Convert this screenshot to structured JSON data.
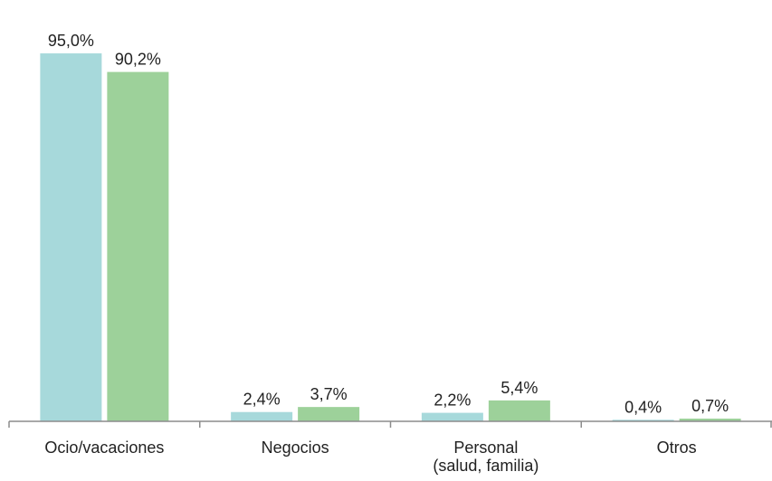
{
  "chart_data": {
    "type": "bar",
    "categories": [
      [
        "Ocio/vacaciones"
      ],
      [
        "Negocios"
      ],
      [
        "Personal",
        "(salud, familia)"
      ],
      [
        "Otros"
      ]
    ],
    "series": [
      {
        "color": "#a7d9db",
        "values": [
          95.0,
          2.4,
          2.2,
          0.4
        ],
        "labels": [
          "95,0%",
          "2,4%",
          "2,2%",
          "0,4%"
        ]
      },
      {
        "color": "#9dd19a",
        "values": [
          90.2,
          3.7,
          5.4,
          0.7
        ],
        "labels": [
          "90,2%",
          "3,7%",
          "5,4%",
          "0,7%"
        ]
      }
    ],
    "ylim": [
      0,
      100
    ],
    "grid": false,
    "legend": "none",
    "title": "",
    "xlabel": "",
    "ylabel": ""
  }
}
